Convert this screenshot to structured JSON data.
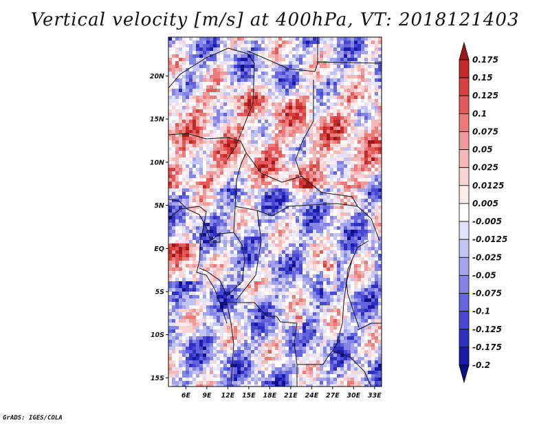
{
  "title": "Vertical velocity [m/s] at 400hPa, VT: 2018121403",
  "credit": "GrADS: IGES/COLA",
  "map": {
    "lon_range": [
      3.5,
      34
    ],
    "lat_range": [
      -16,
      24.5
    ],
    "lon_ticks": [
      "6E",
      "9E",
      "12E",
      "15E",
      "18E",
      "21E",
      "24E",
      "27E",
      "30E",
      "33E"
    ],
    "lat_ticks": [
      "20N",
      "15N",
      "10N",
      "5N",
      "EQ",
      "5S",
      "10S",
      "15S"
    ]
  },
  "colorbar": {
    "labels": [
      "0.175",
      "0.15",
      "0.125",
      "0.1",
      "0.075",
      "0.05",
      "0.025",
      "0.0125",
      "0.005",
      "-0.005",
      "-0.0125",
      "-0.025",
      "-0.05",
      "-0.075",
      "-0.1",
      "-0.125",
      "-0.175",
      "-0.2"
    ],
    "colors": [
      "#a01818",
      "#c42a2a",
      "#d84040",
      "#e45a5a",
      "#ec7c7c",
      "#f09a9a",
      "#f4b8b8",
      "#f8d4d4",
      "#fcecec",
      "#ffffff",
      "#e2e2fa",
      "#c4c4f4",
      "#a4a4ee",
      "#8484e6",
      "#6464de",
      "#4848d2",
      "#3030c0",
      "#1a1aa8",
      "#0e0e88"
    ]
  }
}
